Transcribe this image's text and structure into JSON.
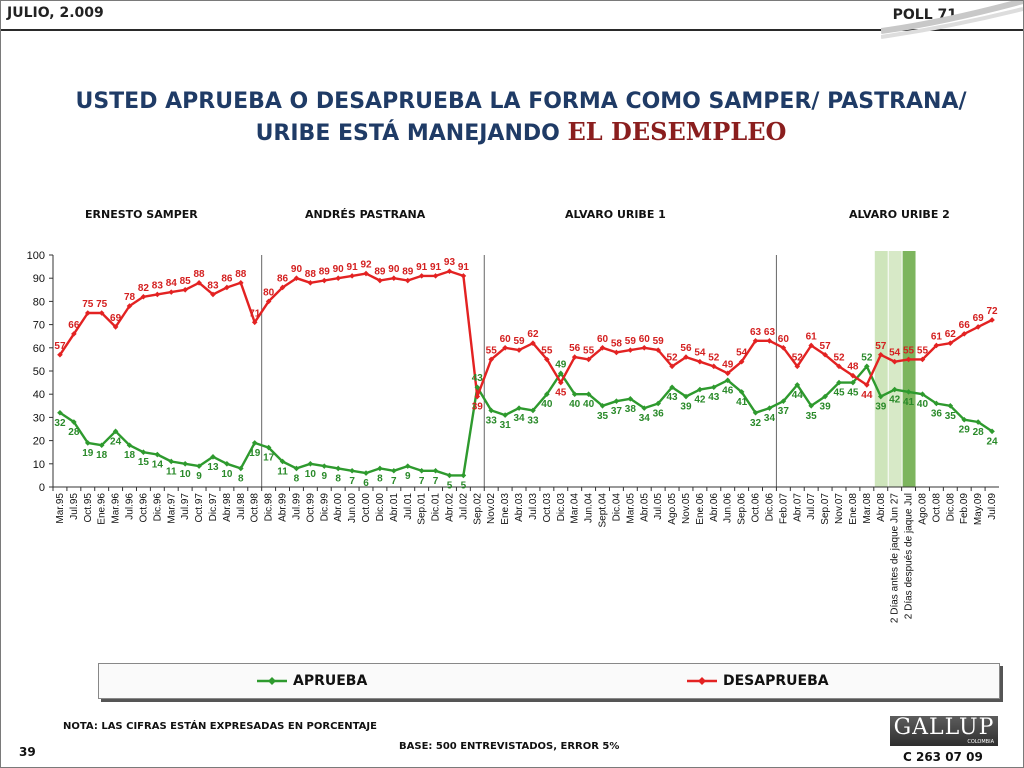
{
  "header": {
    "left": "JULIO, 2.009",
    "right": "POLL 71"
  },
  "title": {
    "line1": "USTED APRUEBA O DESAPRUEBA LA FORMA COMO SAMPER/ PASTRANA/",
    "line2_prefix": "URIBE ESTÁ MANEJANDO ",
    "line2_emphasis": "EL DESEMPLEO"
  },
  "presidents": [
    "ERNESTO SAMPER",
    "ANDRÉS  PASTRANA",
    "ALVARO URIBE 1",
    "ALVARO URIBE 2"
  ],
  "legend": {
    "approve": "APRUEBA",
    "disapprove": "DESAPRUEBA"
  },
  "footer": {
    "note": "NOTA: LAS CIFRAS ESTÁN EXPRESADAS EN PORCENTAJE",
    "base": "BASE: 500 ENTREVISTADOS, ERROR 5%",
    "page": "39",
    "logo": "GALLUP",
    "logo_sub": "COLOMBIA",
    "code": "C 263 07 09"
  },
  "colors": {
    "approve": "#2e9a2e",
    "disapprove": "#e32222",
    "approve_label": "#2a8a2a",
    "disapprove_label": "#d42020",
    "highlight_light": "#c9e2b4",
    "highlight_dark": "#6fad4c",
    "title": "#1f3b66"
  },
  "chart_data": {
    "type": "line",
    "ylim": [
      0,
      100
    ],
    "yticks": [
      0,
      10,
      20,
      30,
      40,
      50,
      60,
      70,
      80,
      90,
      100
    ],
    "categories": [
      "Mar.95",
      "Jul.95",
      "Oct.95",
      "Ene.96",
      "Mar.96",
      "Jul.96",
      "Oct.96",
      "Dic.96",
      "Mar.97",
      "Jul.97",
      "Oct.97",
      "Dic.97",
      "Abr.98",
      "Jul.98",
      "Oct.98",
      "Dic.98",
      "Abr.99",
      "Jul.99",
      "Oct.99",
      "Dic.99",
      "Abr.00",
      "Jun.00",
      "Oct.00",
      "Dic.00",
      "Abr.01",
      "Jul.01",
      "Sep.01",
      "Dic.01",
      "Abr.02",
      "Jul.02",
      "Sep.02",
      "Nov.02",
      "Ene.03",
      "Abr.03",
      "Jul.03",
      "Oct.03",
      "Dic.03",
      "Mar.04",
      "Jun.04",
      "Sept.04",
      "Dic.04",
      "Mar.05",
      "Abr.05",
      "Jul.05",
      "Ago.05",
      "Nov.05",
      "Ene.06",
      "Abr.06",
      "Jun.06",
      "Sep.06",
      "Oct.06",
      "Dic.06",
      "Feb.07",
      "Abr.07",
      "Jul.07",
      "Sep.07",
      "Nov.07",
      "Ene.08",
      "Mar.08",
      "Abr.08",
      "2 Días antes de jaque Jun 27",
      "2 Días después de jaque Jul",
      "Ago.08",
      "Oct.08",
      "Dic.08",
      "Feb.09",
      "May.09",
      "Jul.09"
    ],
    "series": [
      {
        "name": "APRUEBA",
        "values": [
          32,
          28,
          19,
          18,
          24,
          18,
          15,
          14,
          11,
          10,
          9,
          13,
          10,
          8,
          19,
          17,
          11,
          8,
          10,
          9,
          8,
          7,
          6,
          8,
          7,
          9,
          7,
          7,
          5,
          5,
          43,
          33,
          31,
          34,
          33,
          40,
          49,
          40,
          40,
          35,
          37,
          38,
          34,
          36,
          43,
          39,
          42,
          43,
          46,
          41,
          32,
          34,
          37,
          44,
          35,
          39,
          45,
          45,
          52,
          39,
          42,
          41,
          40,
          36,
          35,
          29,
          28,
          24
        ]
      },
      {
        "name": "DESAPRUEBA",
        "values": [
          57,
          66,
          75,
          75,
          69,
          78,
          82,
          83,
          84,
          85,
          88,
          83,
          86,
          88,
          71,
          80,
          86,
          90,
          88,
          89,
          90,
          91,
          92,
          89,
          90,
          89,
          91,
          91,
          93,
          91,
          39,
          55,
          60,
          59,
          62,
          55,
          45,
          56,
          55,
          60,
          58,
          59,
          60,
          59,
          52,
          56,
          54,
          52,
          49,
          54,
          63,
          63,
          60,
          52,
          61,
          57,
          52,
          48,
          44,
          57,
          54,
          55,
          55,
          61,
          62,
          66,
          69,
          72
        ]
      }
    ],
    "period_dividers_after": [
      "Oct.98",
      "Sep.02",
      "Dic.06"
    ],
    "highlighted_categories": [
      "Abr.08",
      "2 Días antes de jaque Jun 27",
      "2 Días después de jaque Jul"
    ]
  }
}
